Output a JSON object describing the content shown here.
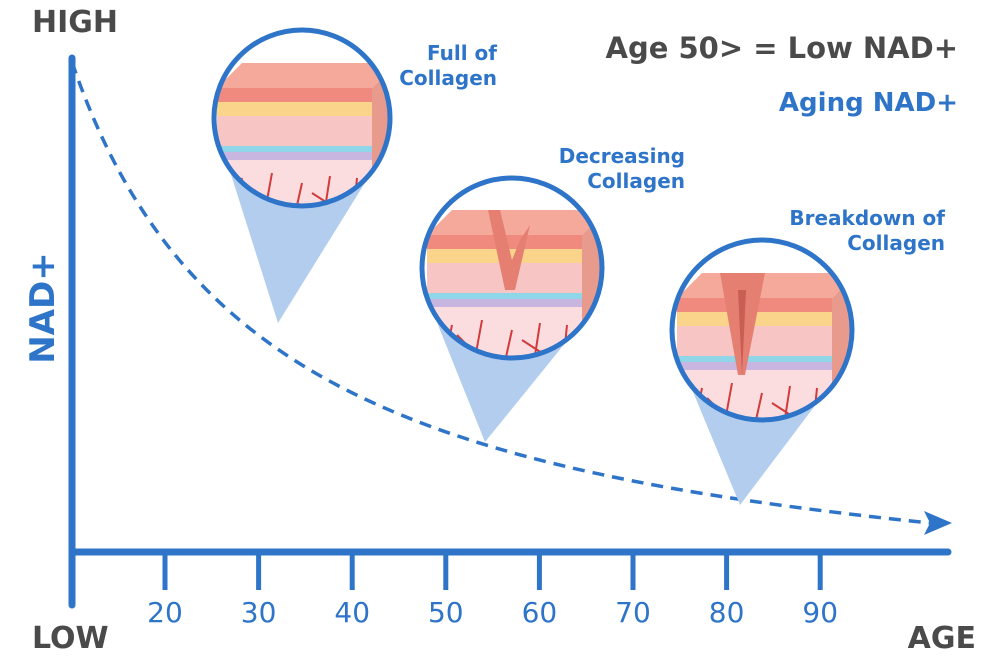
{
  "labels": {
    "high": "HIGH",
    "low": "LOW",
    "y_axis": "NAD+",
    "x_axis": "AGE"
  },
  "title": "Age 50> = Low NAD+",
  "subtitle": "Aging NAD+",
  "x_ticks": [
    "20",
    "30",
    "40",
    "50",
    "60",
    "70",
    "80",
    "90"
  ],
  "callouts": [
    {
      "lines": [
        "Full of",
        "Collagen"
      ]
    },
    {
      "lines": [
        "Decreasing",
        "Collagen"
      ]
    },
    {
      "lines": [
        "Breakdown of",
        "Collagen"
      ]
    }
  ]
}
